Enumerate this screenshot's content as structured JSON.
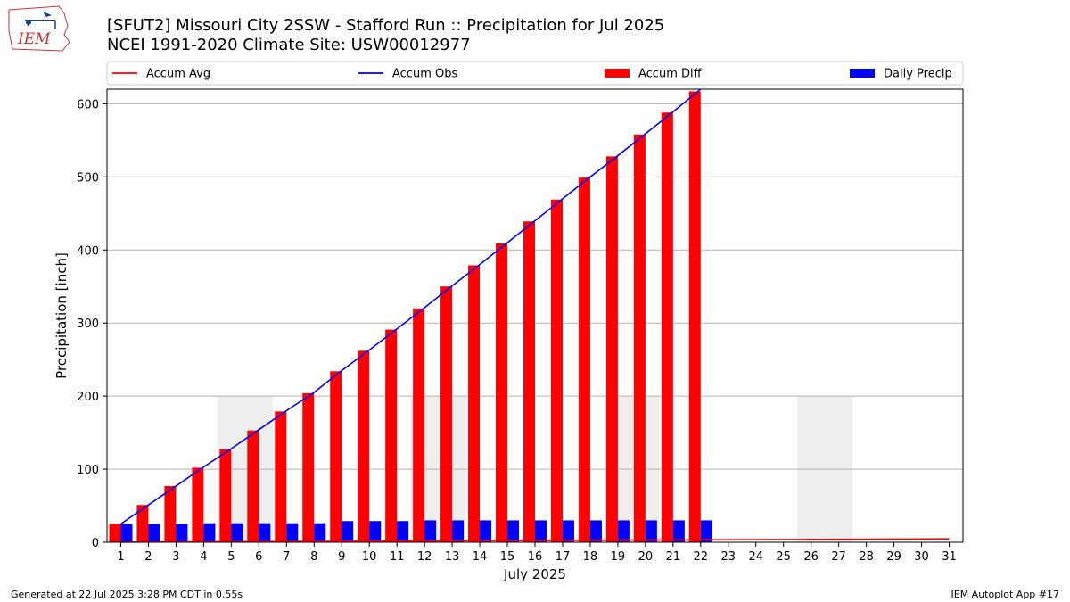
{
  "header": {
    "title_line1": "[SFUT2] Missouri City 2SSW - Stafford Run :: Precipitation for Jul 2025",
    "title_line2": "NCEI 1991-2020 Climate Site: USW00012977",
    "logo_text": "IEM"
  },
  "footer": {
    "generated": "Generated at 22 Jul 2025 3:28 PM CDT in 0.55s",
    "app": "IEM Autoplot App #17"
  },
  "chart_data": {
    "type": "bar",
    "xlabel": "July 2025",
    "ylabel": "Precipitation [inch]",
    "ylim": [
      0,
      620
    ],
    "xlim": [
      0.5,
      31.5
    ],
    "yticks": [
      0,
      100,
      200,
      300,
      400,
      500,
      600
    ],
    "categories": [
      "1",
      "2",
      "3",
      "4",
      "5",
      "6",
      "7",
      "8",
      "9",
      "10",
      "11",
      "12",
      "13",
      "14",
      "15",
      "16",
      "17",
      "18",
      "19",
      "20",
      "21",
      "22",
      "23",
      "24",
      "25",
      "26",
      "27",
      "28",
      "29",
      "30",
      "31"
    ],
    "grid": "horizontal",
    "legend_position": "top",
    "legend": [
      "Accum Avg",
      "Accum Obs",
      "Accum Diff",
      "Daily Precip"
    ],
    "weekend_shading": [
      [
        4.5,
        6.5
      ],
      [
        11.5,
        13.5
      ],
      [
        18.5,
        20.5
      ],
      [
        25.5,
        27.5
      ]
    ],
    "shading_height": 200,
    "series": [
      {
        "name": "Accum Avg",
        "kind": "line",
        "color": "#ff0000",
        "x": [
          1,
          2,
          3,
          4,
          5,
          6,
          7,
          8,
          9,
          10,
          11,
          12,
          13,
          14,
          15,
          16,
          17,
          18,
          19,
          20,
          21,
          22,
          23,
          24,
          25,
          26,
          27,
          28,
          29,
          30,
          31
        ],
        "values": [
          0.1,
          0.3,
          0.4,
          0.6,
          0.7,
          0.9,
          1.0,
          1.2,
          1.3,
          1.5,
          1.6,
          1.8,
          1.9,
          2.1,
          2.2,
          2.4,
          2.5,
          2.7,
          2.8,
          3.0,
          3.1,
          3.3,
          3.4,
          3.6,
          3.7,
          3.9,
          4.0,
          4.2,
          4.3,
          4.5,
          4.6
        ]
      },
      {
        "name": "Accum Obs",
        "kind": "line",
        "color": "#0000ff",
        "x": [
          1,
          2,
          3,
          4,
          5,
          6,
          7,
          8,
          9,
          10,
          11,
          12,
          13,
          14,
          15,
          16,
          17,
          18,
          19,
          20,
          21,
          22
        ],
        "values": [
          25,
          51,
          77,
          103,
          128,
          154,
          180,
          205,
          235,
          263,
          292,
          321,
          351,
          380,
          410,
          440,
          470,
          500,
          529,
          559,
          589,
          620
        ]
      },
      {
        "name": "Accum Diff",
        "kind": "bar",
        "color": "#ff0000",
        "x": [
          1,
          2,
          3,
          4,
          5,
          6,
          7,
          8,
          9,
          10,
          11,
          12,
          13,
          14,
          15,
          16,
          17,
          18,
          19,
          20,
          21,
          22
        ],
        "values": [
          25,
          51,
          77,
          102,
          127,
          153,
          179,
          204,
          234,
          262,
          291,
          320,
          350,
          379,
          409,
          439,
          469,
          499,
          528,
          558,
          588,
          617
        ]
      },
      {
        "name": "Daily Precip",
        "kind": "bar",
        "color": "#0000ff",
        "x": [
          1,
          2,
          3,
          4,
          5,
          6,
          7,
          8,
          9,
          10,
          11,
          12,
          13,
          14,
          15,
          16,
          17,
          18,
          19,
          20,
          21,
          22
        ],
        "values": [
          25,
          25,
          25,
          26,
          26,
          26,
          26,
          26,
          29,
          29,
          29,
          30,
          30,
          30,
          30,
          30,
          30,
          30,
          30,
          30,
          30,
          30
        ]
      }
    ]
  }
}
